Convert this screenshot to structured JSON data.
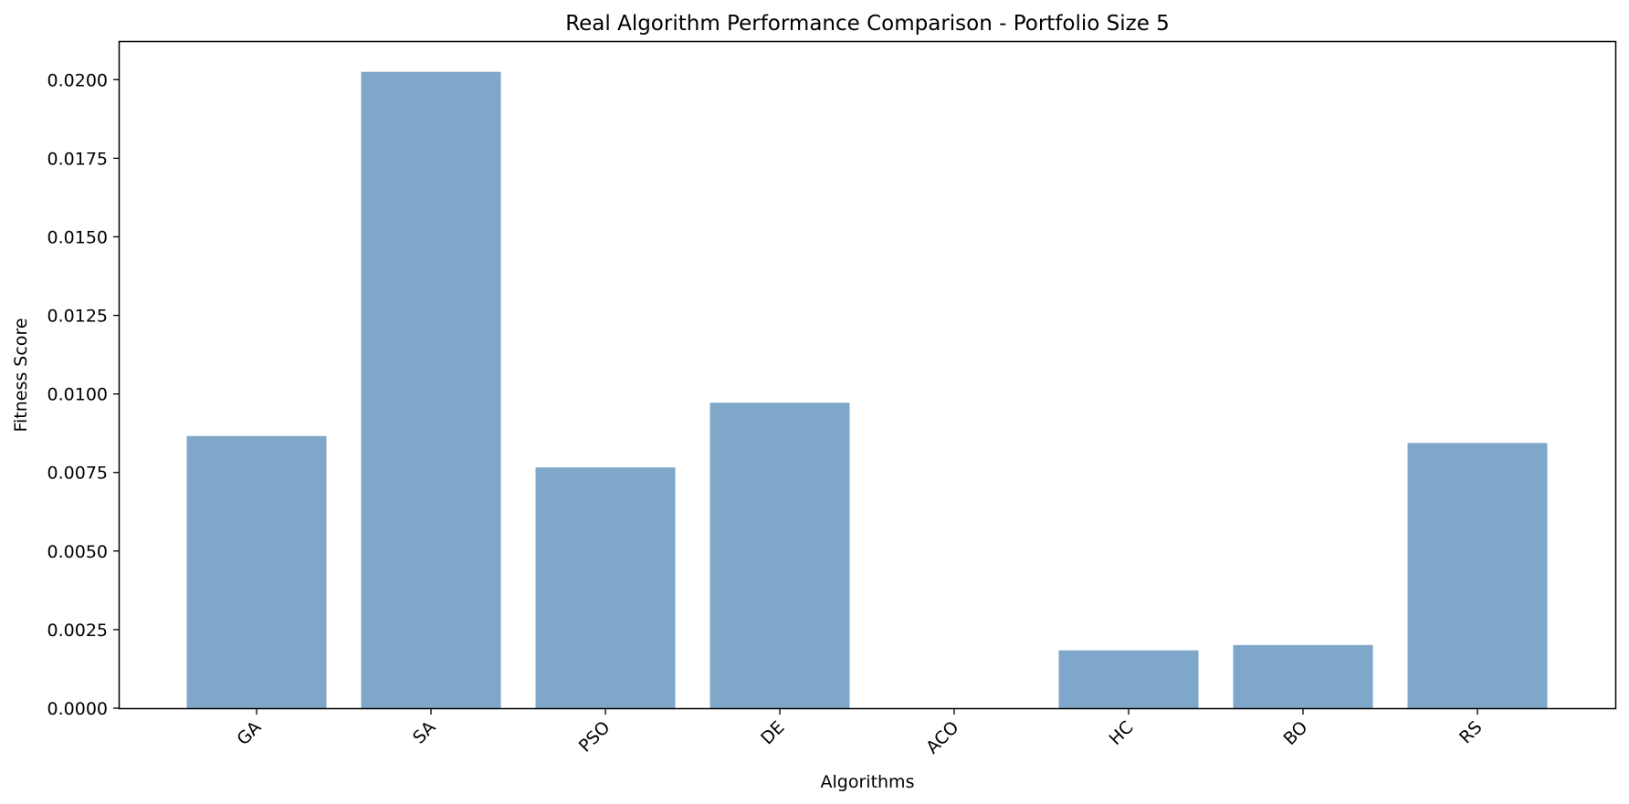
{
  "chart_data": {
    "type": "bar",
    "title": "Real Algorithm Performance Comparison - Portfolio Size 5",
    "xlabel": "Algorithms",
    "ylabel": "Fitness Score",
    "categories": [
      "GA",
      "SA",
      "PSO",
      "DE",
      "ACO",
      "HC",
      "BO",
      "RS"
    ],
    "values": [
      0.00866,
      0.02025,
      0.00766,
      0.00972,
      0.0,
      0.00184,
      0.00201,
      0.00844
    ],
    "ylim": [
      0,
      0.0212
    ],
    "yticks": [
      0.0,
      0.0025,
      0.005,
      0.0075,
      0.01,
      0.0125,
      0.015,
      0.0175,
      0.02
    ],
    "ytick_labels": [
      "0.0000",
      "0.0025",
      "0.0050",
      "0.0075",
      "0.0100",
      "0.0125",
      "0.0150",
      "0.0175",
      "0.0200"
    ],
    "bar_color": "#7ea7ca",
    "grid": false,
    "legend": "none",
    "xtick_rotation": 45
  }
}
